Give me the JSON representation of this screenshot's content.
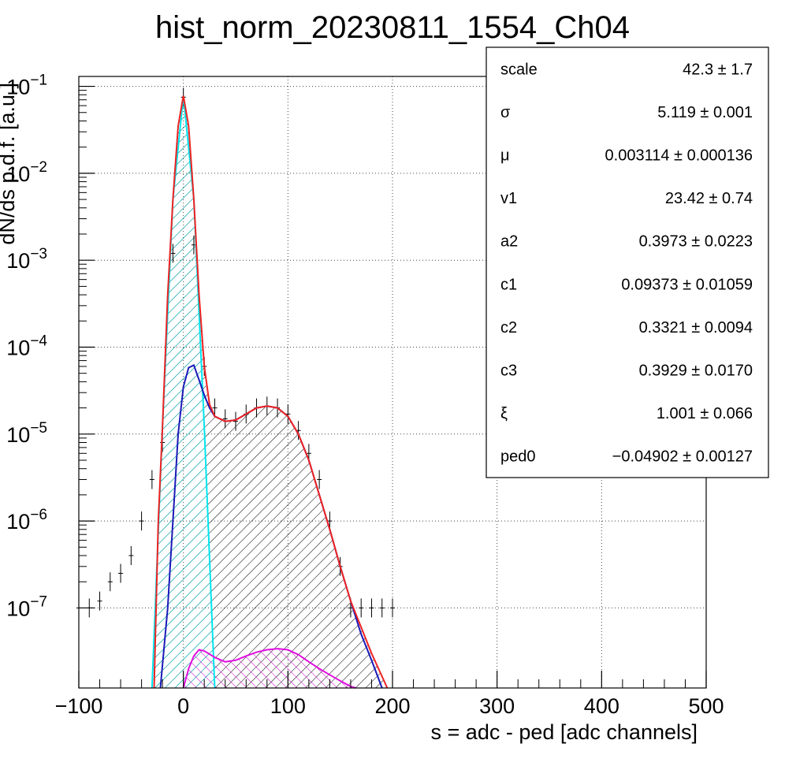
{
  "chart_data": {
    "type": "line",
    "title": "hist_norm_20230811_1554_Ch04",
    "xlabel": "s = adc - ped [adc channels]",
    "ylabel": "dN/ds p.d.f. [a.u.]",
    "log_y": true,
    "xlim": [
      -100,
      500
    ],
    "ylim": [
      1.2e-08,
      0.13
    ],
    "grid": true,
    "x_ticks": [
      -100,
      0,
      100,
      200,
      300,
      400,
      500
    ],
    "x_tick_labels": [
      "−100",
      "0",
      "100",
      "200",
      "300",
      "400",
      "500"
    ],
    "y_ticks": [
      {
        "value": 1e-07,
        "base": "10",
        "exp": "−7"
      },
      {
        "value": 1e-06,
        "base": "10",
        "exp": "−6"
      },
      {
        "value": 1e-05,
        "base": "10",
        "exp": "−5"
      },
      {
        "value": 0.0001,
        "base": "10",
        "exp": "−4"
      },
      {
        "value": 0.001,
        "base": "10",
        "exp": "−3"
      },
      {
        "value": 0.01,
        "base": "10",
        "exp": "−2"
      },
      {
        "value": 0.1,
        "base": "10",
        "exp": "−1"
      }
    ],
    "series": [
      {
        "color": "#000000",
        "style": "errorbar",
        "x": [
          -100,
          -90,
          -80,
          -70,
          -60,
          -50,
          -40,
          -30,
          -20,
          -10,
          0,
          10,
          20,
          30,
          40,
          50,
          60,
          70,
          80,
          90,
          100,
          110,
          120,
          130,
          140,
          150,
          160,
          170,
          180,
          190,
          200
        ],
        "y": [
          1e-07,
          1e-07,
          1.2e-07,
          2e-07,
          2.5e-07,
          4e-07,
          1e-06,
          3e-06,
          8e-06,
          0.0012,
          0.075,
          0.0015,
          6e-05,
          2e-05,
          1.5e-05,
          1.4e-05,
          1.7e-05,
          2e-05,
          2.1e-05,
          2e-05,
          1.7e-05,
          1.1e-05,
          6e-06,
          3e-06,
          1e-06,
          3e-07,
          1e-07,
          1e-07,
          1e-07,
          1e-07,
          1e-07
        ]
      },
      {
        "color": "#00e5ee",
        "style": "line",
        "x": [
          -30,
          -20,
          -10,
          0,
          10,
          20,
          30
        ],
        "y": [
          1.2e-08,
          1.2e-05,
          0.005,
          0.078,
          0.005,
          1.2e-05,
          1.2e-08
        ]
      },
      {
        "color": "#1a1ab8",
        "style": "line",
        "x": [
          -22,
          -15,
          -10,
          -5,
          0,
          5,
          10,
          15,
          20,
          25,
          30,
          40,
          50,
          60,
          70,
          80,
          90,
          100,
          110,
          120,
          130,
          140,
          150,
          160,
          170,
          180,
          190
        ],
        "y": [
          1.2e-08,
          1e-07,
          1e-06,
          1e-05,
          3.5e-05,
          5.8e-05,
          6.2e-05,
          4.2e-05,
          2.8e-05,
          2e-05,
          1.6e-05,
          1.4e-05,
          1.45e-05,
          1.7e-05,
          2e-05,
          2.1e-05,
          2e-05,
          1.6e-05,
          1e-05,
          5e-06,
          2e-06,
          8e-07,
          3e-07,
          1.2e-07,
          5e-08,
          2.5e-08,
          1.2e-08
        ]
      },
      {
        "color": "#ee2222",
        "style": "line",
        "x": [
          -28,
          -24,
          -20,
          -15,
          -10,
          -5,
          0,
          5,
          10,
          15,
          20,
          25,
          30,
          40,
          50,
          60,
          70,
          80,
          90,
          100,
          110,
          120,
          130,
          140,
          150,
          160,
          170,
          180,
          195
        ],
        "y": [
          1.2e-08,
          1e-06,
          1.2e-05,
          0.0004,
          0.005,
          0.035,
          0.078,
          0.035,
          0.005,
          0.0004,
          6e-05,
          2.2e-05,
          1.6e-05,
          1.4e-05,
          1.45e-05,
          1.7e-05,
          2e-05,
          2.1e-05,
          2e-05,
          1.6e-05,
          1e-05,
          5e-06,
          2e-06,
          8e-07,
          3e-07,
          1.2e-07,
          6e-08,
          3e-08,
          1.2e-08
        ]
      },
      {
        "color": "#e010e0",
        "style": "line",
        "x": [
          0,
          5,
          10,
          15,
          20,
          30,
          40,
          50,
          60,
          70,
          80,
          90,
          100,
          110,
          120,
          130,
          140,
          150,
          160,
          165
        ],
        "y": [
          1.2e-08,
          2e-08,
          2.8e-08,
          3.3e-08,
          3.2e-08,
          2.7e-08,
          2.4e-08,
          2.5e-08,
          2.8e-08,
          3.1e-08,
          3.3e-08,
          3.4e-08,
          3.3e-08,
          2.9e-08,
          2.4e-08,
          2e-08,
          1.7e-08,
          1.45e-08,
          1.25e-08,
          1.2e-08
        ]
      }
    ],
    "stats": [
      {
        "label": "scale",
        "value": "42.3 ± 1.7"
      },
      {
        "label": "σ",
        "value": "5.119 ± 0.001"
      },
      {
        "label": "μ",
        "value": "0.003114 ± 0.000136"
      },
      {
        "label": "v1",
        "value": "23.42 ± 0.74"
      },
      {
        "label": "a2",
        "value": "0.3973 ± 0.0223"
      },
      {
        "label": "c1",
        "value": "0.09373 ± 0.01059"
      },
      {
        "label": "c2",
        "value": "0.3321 ± 0.0094"
      },
      {
        "label": "c3",
        "value": "0.3929 ± 0.0170"
      },
      {
        "label": "ξ",
        "value": "1.001 ± 0.066"
      },
      {
        "label": "ped0",
        "value": "−0.04902 ± 0.00127"
      }
    ]
  }
}
